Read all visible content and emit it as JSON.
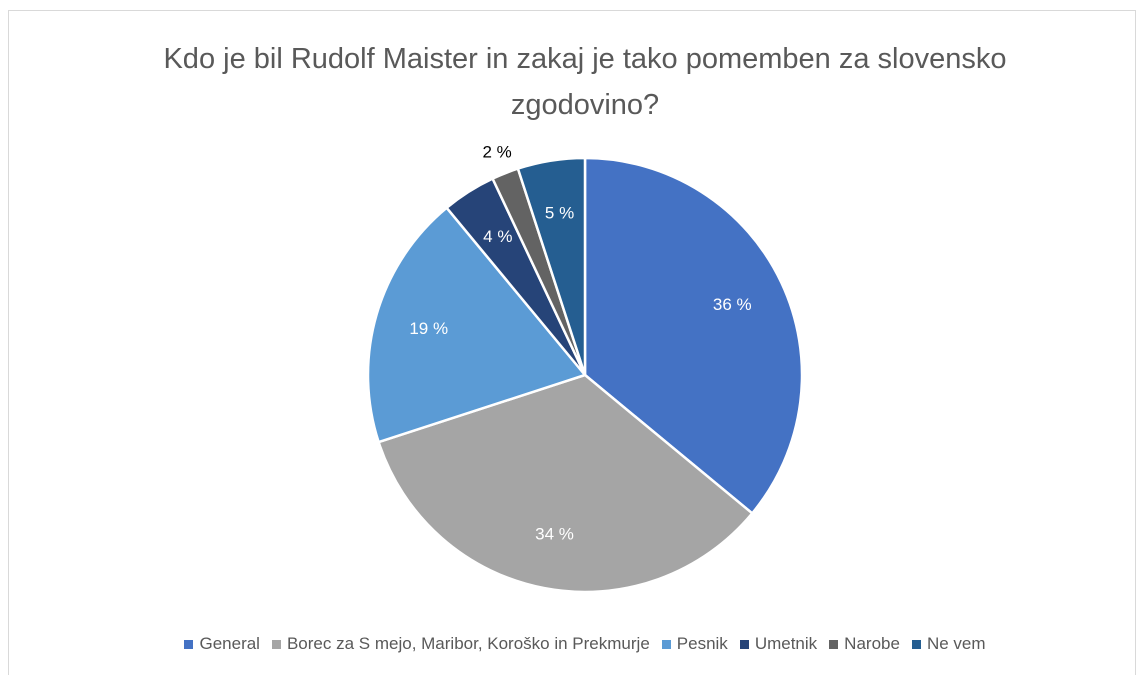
{
  "chart_data": {
    "type": "pie",
    "title": "Kdo je bil Rudolf Maister in zakaj je tako pomemben za slovensko zgodovino?",
    "categories": [
      "General",
      "Borec za S mejo, Maribor, Koroško in Prekmurje",
      "Pesnik",
      "Umetnik",
      "Narobe",
      "Ne vem"
    ],
    "values": [
      36,
      34,
      19,
      4,
      2,
      5
    ],
    "value_labels": [
      "36 %",
      "34 %",
      "19 %",
      "4 %",
      "2 %",
      "5 %"
    ],
    "colors": [
      "#4472c4",
      "#a5a5a5",
      "#5b9bd5",
      "#264478",
      "#636363",
      "#255e91"
    ],
    "legend": "bottom"
  }
}
